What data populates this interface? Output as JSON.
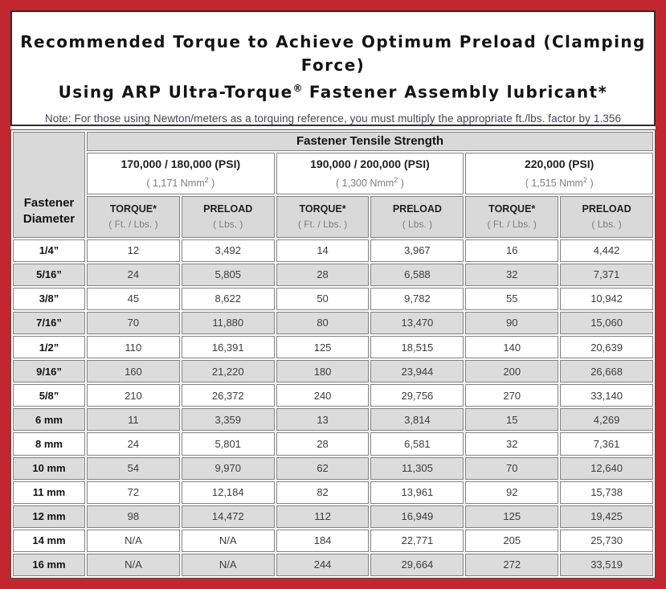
{
  "title": {
    "line1": "Recommended Torque to Achieve Optimum Preload (Clamping Force)",
    "line2_pre": "Using ARP Ultra-Torque",
    "line2_sup": "®",
    "line2_post": " Fastener Assembly lubricant*"
  },
  "note": "Note: For those using Newton/meters as a torquing reference, you must multiply the appropriate ft./lbs. factor by 1.356",
  "colors": {
    "frame_red": "#c22730",
    "title_box_border": "#352b2b",
    "header_gray": "#d9d9d9",
    "shaded_row_gray": "#dcdcdc",
    "cell_border_gray": "#828282",
    "note_text": "#474455"
  },
  "table": {
    "tensile_header": "Fastener Tensile Strength",
    "diameter_header_line1": "Fastener",
    "diameter_header_line2": "Diameter",
    "groups": [
      {
        "psi": "170,000 / 180,000 (PSI)",
        "nmm_pre": "( 1,171 Nmm",
        "nmm_sup": "2",
        "nmm_post": " )"
      },
      {
        "psi": "190,000 / 200,000 (PSI)",
        "nmm_pre": "( 1,300 Nmm",
        "nmm_sup": "2",
        "nmm_post": " )"
      },
      {
        "psi": "220,000 (PSI)",
        "nmm_pre": "( 1,515 Nmm",
        "nmm_sup": "2",
        "nmm_post": " )"
      }
    ],
    "col_headers": {
      "torque_label": "TORQUE*",
      "torque_sub": "( Ft. / Lbs. )",
      "preload_label": "PRELOAD",
      "preload_sub": "( Lbs. )"
    },
    "rows": [
      {
        "diameter": "1/4”",
        "values": [
          "12",
          "3,492",
          "14",
          "3,967",
          "16",
          "4,442"
        ]
      },
      {
        "diameter": "5/16”",
        "values": [
          "24",
          "5,805",
          "28",
          "6,588",
          "32",
          "7,371"
        ]
      },
      {
        "diameter": "3/8”",
        "values": [
          "45",
          "8,622",
          "50",
          "9,782",
          "55",
          "10,942"
        ]
      },
      {
        "diameter": "7/16”",
        "values": [
          "70",
          "11,880",
          "80",
          "13,470",
          "90",
          "15,060"
        ]
      },
      {
        "diameter": "1/2”",
        "values": [
          "110",
          "16,391",
          "125",
          "18,515",
          "140",
          "20,639"
        ]
      },
      {
        "diameter": "9/16”",
        "values": [
          "160",
          "21,220",
          "180",
          "23,944",
          "200",
          "26,668"
        ]
      },
      {
        "diameter": "5/8”",
        "values": [
          "210",
          "26,372",
          "240",
          "29,756",
          "270",
          "33,140"
        ]
      },
      {
        "diameter": "6 mm",
        "values": [
          "11",
          "3,359",
          "13",
          "3,814",
          "15",
          "4,269"
        ]
      },
      {
        "diameter": "8 mm",
        "values": [
          "24",
          "5,801",
          "28",
          "6,581",
          "32",
          "7,361"
        ]
      },
      {
        "diameter": "10 mm",
        "values": [
          "54",
          "9,970",
          "62",
          "11,305",
          "70",
          "12,640"
        ]
      },
      {
        "diameter": "11 mm",
        "values": [
          "72",
          "12,184",
          "82",
          "13,961",
          "92",
          "15,738"
        ]
      },
      {
        "diameter": "12 mm",
        "values": [
          "98",
          "14,472",
          "112",
          "16,949",
          "125",
          "19,425"
        ]
      },
      {
        "diameter": "14 mm",
        "values": [
          "N/A",
          "N/A",
          "184",
          "22,771",
          "205",
          "25,730"
        ]
      },
      {
        "diameter": "16 mm",
        "values": [
          "N/A",
          "N/A",
          "244",
          "29,664",
          "272",
          "33,519"
        ]
      }
    ]
  }
}
